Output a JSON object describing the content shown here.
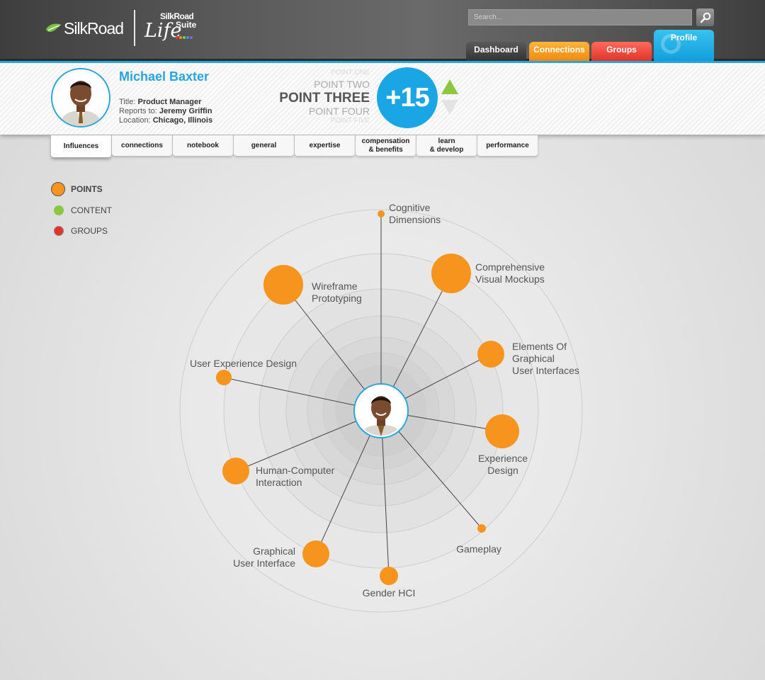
{
  "brand": {
    "logo_text": "SilkRoad",
    "life_suite_top": "SilkRoad",
    "life_word": "Life",
    "life_suite_word": "Suite"
  },
  "search": {
    "placeholder": "Search..."
  },
  "nav": {
    "dashboard": "Dashboard",
    "connections": "Connections",
    "groups": "Groups",
    "profile": "Profile"
  },
  "profile": {
    "name": "Michael Baxter",
    "title_label": "Title:",
    "title": "Product Manager",
    "reports_label": "Reports to:",
    "reports_to": "Jeremy Griffin",
    "location_label": "Location:",
    "location": "Chicago, Illinois"
  },
  "points": {
    "one": "POINT ONE",
    "two": "POINT TWO",
    "three": "POINT THREE",
    "four": "POINT FOUR",
    "five": "POINT FIVE",
    "score": "+15"
  },
  "tabs": {
    "influences": "Influences",
    "connections": "connections",
    "notebook": "notebook",
    "general": "general",
    "expertise": "expertise",
    "comp1": "compensation",
    "comp2": "& benefits",
    "learn1": "learn",
    "learn2": "& develop",
    "performance": "performance"
  },
  "legend": {
    "points": "POINTS",
    "content": "CONTENT",
    "groups": "GROUPS"
  },
  "colors": {
    "accent": "#2aa4dc",
    "points": "#f7941d",
    "content": "#8dc63f",
    "groups": "#e8312a"
  },
  "influences": [
    {
      "l1": "Cognitive",
      "l2": "Dimensions"
    },
    {
      "l1": "Comprehensive",
      "l2": "Visual Mockups"
    },
    {
      "l1": "Wireframe",
      "l2": "Prototyping"
    },
    {
      "l1": "Elements Of",
      "l2": "Graphical",
      "l3": "User Interfaces"
    },
    {
      "l1": "User Experience Design"
    },
    {
      "l1": "Experience",
      "l2": "Design"
    },
    {
      "l1": "Human-Computer",
      "l2": "Interaction"
    },
    {
      "l1": "Gameplay"
    },
    {
      "l1": "Graphical",
      "l2": "User Interface"
    },
    {
      "l1": "Gender HCI"
    }
  ]
}
